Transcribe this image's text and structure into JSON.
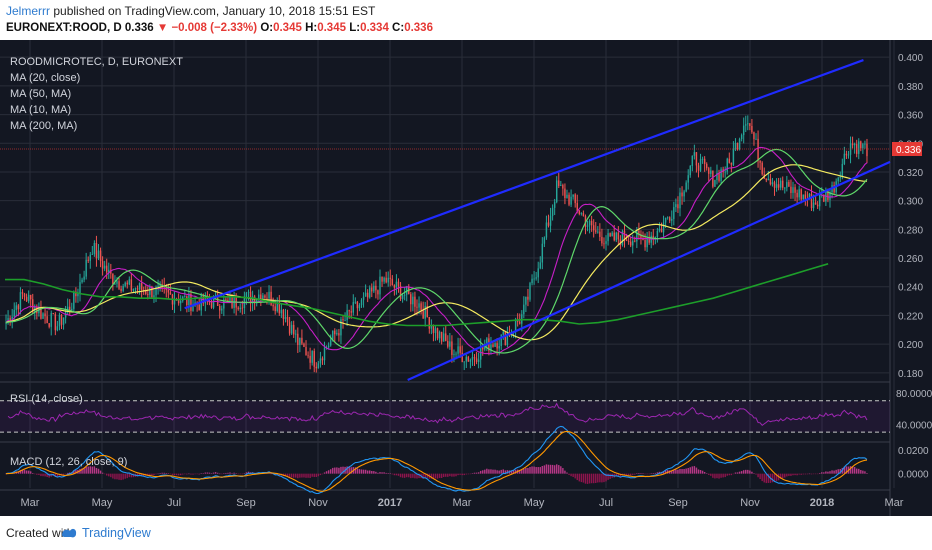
{
  "header": {
    "user": "Jelmerrr",
    "published_text": "published on TradingView.com, January 10, 2018 15:51 EST",
    "symbol": "EURONEXT:ROOD, D",
    "last": "0.336",
    "change": "−0.008 (−2.33%)",
    "o_label": "O:",
    "o_val": "0.345",
    "h_label": "H:",
    "h_val": "0.345",
    "l_label": "L:",
    "l_val": "0.334",
    "c_label": "C:",
    "c_val": "0.336"
  },
  "legend": {
    "title": "ROODMICROTEC, D, EURONEXT",
    "ma1": "MA (20, close)",
    "ma2": "MA (50, MA)",
    "ma3": "MA (10, MA)",
    "ma4": "MA (200, MA)",
    "rsi": "RSI (14, close)",
    "macd": "MACD (12, 26, close, 9)"
  },
  "footer": {
    "created": "Created with",
    "brand": "TradingView"
  },
  "colors": {
    "background": "#131722",
    "grid": "#2a2e39",
    "up": "#26a69a",
    "down": "#ef5350",
    "ma20": "#c71ec7",
    "ma50": "#f5eb60",
    "ma10": "#5fd86a",
    "ma200": "#1d9e2a",
    "channel": "#1f2bff",
    "rsi": "#9c27b0",
    "macd": "#2196f3",
    "signal": "#ff9800",
    "price_tag": "#e53935"
  },
  "chart_data": [
    {
      "type": "candlestick",
      "title": "ROODMICROTEC, D, EURONEXT",
      "x_ticks": [
        "Mar",
        "May",
        "Jul",
        "Sep",
        "Nov",
        "2017",
        "Mar",
        "May",
        "Jul",
        "Sep",
        "Nov",
        "2018",
        "Mar"
      ],
      "y_ticks": [
        "0.400",
        "0.380",
        "0.360",
        "0.340",
        "0.320",
        "0.300",
        "0.280",
        "0.260",
        "0.240",
        "0.220",
        "0.200",
        "0.180"
      ],
      "ylim": [
        0.175,
        0.405
      ],
      "last_price": "0.336",
      "close_series": [
        0.215,
        0.235,
        0.222,
        0.213,
        0.232,
        0.268,
        0.248,
        0.24,
        0.238,
        0.236,
        0.232,
        0.228,
        0.23,
        0.228,
        0.232,
        0.236,
        0.225,
        0.2,
        0.188,
        0.205,
        0.222,
        0.232,
        0.245,
        0.236,
        0.228,
        0.208,
        0.195,
        0.19,
        0.2,
        0.205,
        0.22,
        0.26,
        0.31,
        0.298,
        0.28,
        0.272,
        0.275,
        0.272,
        0.28,
        0.3,
        0.33,
        0.315,
        0.325,
        0.36,
        0.32,
        0.31,
        0.305,
        0.298,
        0.308,
        0.34,
        0.336
      ],
      "channel_upper": [
        [
          0.203,
          0.225
        ],
        [
          0.97,
          0.398
        ]
      ],
      "channel_lower": [
        [
          0.455,
          0.175
        ],
        [
          1.0,
          0.327
        ]
      ],
      "ma200": [
        0.245,
        0.245,
        0.242,
        0.238,
        0.235,
        0.233,
        0.233,
        0.232,
        0.232,
        0.231,
        0.232,
        0.233,
        0.233,
        0.232,
        0.229,
        0.227,
        0.225,
        0.222,
        0.219,
        0.216,
        0.214,
        0.213,
        0.213,
        0.213,
        0.214,
        0.215,
        0.216,
        0.217,
        0.217,
        0.216,
        0.214,
        0.215,
        0.217,
        0.22,
        0.223,
        0.226,
        0.229,
        0.232,
        0.236,
        0.24,
        0.244,
        0.248,
        0.252,
        0.256
      ]
    },
    {
      "type": "line",
      "title": "RSI (14, close)",
      "y_ticks": [
        "80.0000",
        "40.0000"
      ],
      "ylim": [
        20,
        90
      ],
      "bands": [
        70,
        30
      ]
    },
    {
      "type": "line",
      "title": "MACD (12, 26, close, 9)",
      "y_ticks": [
        "0.0200",
        "0.0000"
      ],
      "ylim": [
        -0.012,
        0.024
      ],
      "series": [
        "MACD",
        "Signal",
        "Histogram"
      ]
    }
  ]
}
